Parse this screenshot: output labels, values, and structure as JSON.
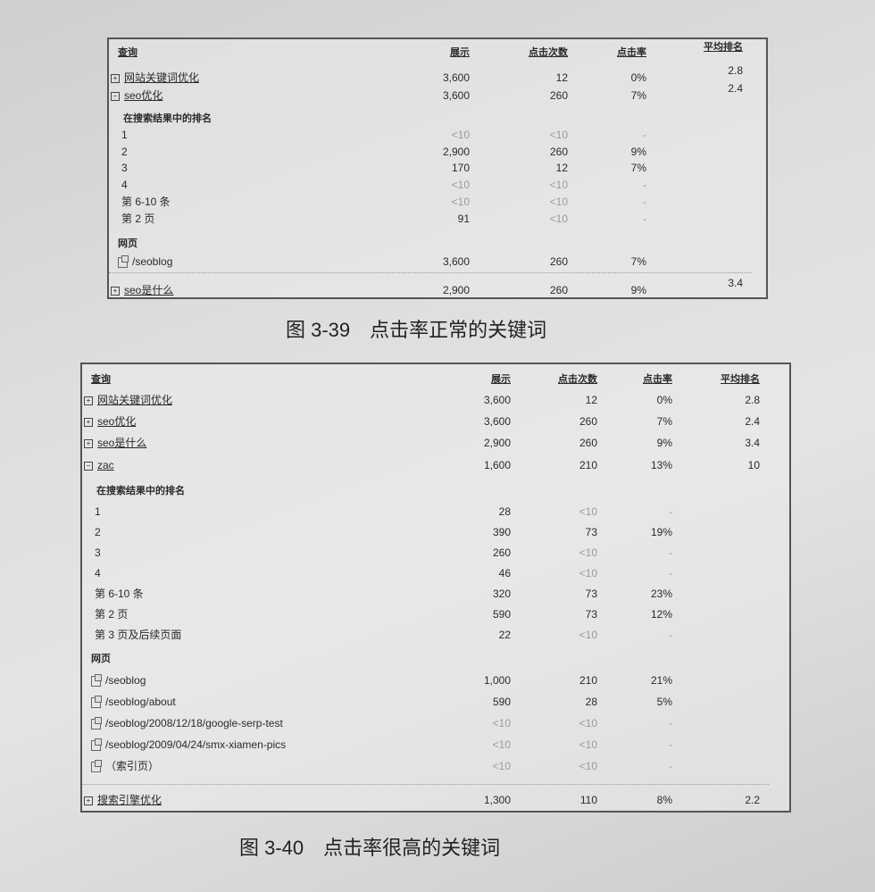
{
  "headers": [
    "查询",
    "展示",
    "点击次数",
    "点击率",
    "平均排名"
  ],
  "figure1": {
    "number": "图 3-39",
    "title": "点击率正常的关键词",
    "rows": [
      {
        "type": "query",
        "icon": "expand",
        "label": "网站关键词优化",
        "impressions": "3,600",
        "clicks": "12",
        "ctr": "0%",
        "avg": "2.8"
      },
      {
        "type": "query",
        "icon": "collapse",
        "label": "seo优化",
        "impressions": "3,600",
        "clicks": "260",
        "ctr": "7%",
        "avg": "2.4"
      },
      {
        "type": "section",
        "label": "在搜索结果中的排名"
      },
      {
        "type": "rank",
        "label": "1",
        "impressions": "<10",
        "clicks": "<10",
        "ctr": "-"
      },
      {
        "type": "rank",
        "label": "2",
        "impressions": "2,900",
        "clicks": "260",
        "ctr": "9%"
      },
      {
        "type": "rank",
        "label": "3",
        "impressions": "170",
        "clicks": "12",
        "ctr": "7%"
      },
      {
        "type": "rank",
        "label": "4",
        "impressions": "<10",
        "clicks": "<10",
        "ctr": "-"
      },
      {
        "type": "rank",
        "label": "第 6-10 条",
        "impressions": "<10",
        "clicks": "<10",
        "ctr": "-"
      },
      {
        "type": "rank",
        "label": "第 2 页",
        "impressions": "91",
        "clicks": "<10",
        "ctr": "-"
      },
      {
        "type": "section",
        "label": "网页"
      },
      {
        "type": "page",
        "label": "/seoblog",
        "impressions": "3,600",
        "clicks": "260",
        "ctr": "7%"
      },
      {
        "type": "query",
        "icon": "expand",
        "label": "seo是什么",
        "impressions": "2,900",
        "clicks": "260",
        "ctr": "9%",
        "avg": "3.4"
      }
    ]
  },
  "figure2": {
    "number": "图 3-40",
    "title": "点击率很高的关键词",
    "rows": [
      {
        "type": "query",
        "icon": "expand",
        "label": "网站关键词优化",
        "impressions": "3,600",
        "clicks": "12",
        "ctr": "0%",
        "avg": "2.8"
      },
      {
        "type": "query",
        "icon": "expand",
        "label": "seo优化",
        "impressions": "3,600",
        "clicks": "260",
        "ctr": "7%",
        "avg": "2.4"
      },
      {
        "type": "query",
        "icon": "expand",
        "label": "seo是什么",
        "impressions": "2,900",
        "clicks": "260",
        "ctr": "9%",
        "avg": "3.4"
      },
      {
        "type": "query",
        "icon": "collapse",
        "label": "zac",
        "impressions": "1,600",
        "clicks": "210",
        "ctr": "13%",
        "avg": "10"
      },
      {
        "type": "section",
        "label": "在搜索结果中的排名"
      },
      {
        "type": "rank",
        "label": "1",
        "impressions": "28",
        "clicks": "<10",
        "ctr": "-"
      },
      {
        "type": "rank",
        "label": "2",
        "impressions": "390",
        "clicks": "73",
        "ctr": "19%"
      },
      {
        "type": "rank",
        "label": "3",
        "impressions": "260",
        "clicks": "<10",
        "ctr": "-"
      },
      {
        "type": "rank",
        "label": "4",
        "impressions": "46",
        "clicks": "<10",
        "ctr": "-"
      },
      {
        "type": "rank",
        "label": "第 6-10 条",
        "impressions": "320",
        "clicks": "73",
        "ctr": "23%"
      },
      {
        "type": "rank",
        "label": "第 2 页",
        "impressions": "590",
        "clicks": "73",
        "ctr": "12%"
      },
      {
        "type": "rank",
        "label": "第 3 页及后续页面",
        "impressions": "22",
        "clicks": "<10",
        "ctr": "-"
      },
      {
        "type": "section",
        "label": "网页"
      },
      {
        "type": "page",
        "label": "/seoblog",
        "impressions": "1,000",
        "clicks": "210",
        "ctr": "21%"
      },
      {
        "type": "page",
        "label": "/seoblog/about",
        "impressions": "590",
        "clicks": "28",
        "ctr": "5%"
      },
      {
        "type": "page",
        "label": "/seoblog/2008/12/18/google-serp-test",
        "impressions": "<10",
        "clicks": "<10",
        "ctr": "-"
      },
      {
        "type": "page",
        "label": "/seoblog/2009/04/24/smx-xiamen-pics",
        "impressions": "<10",
        "clicks": "<10",
        "ctr": "-"
      },
      {
        "type": "page",
        "label": "（索引页）",
        "impressions": "<10",
        "clicks": "<10",
        "ctr": "-"
      },
      {
        "type": "query",
        "icon": "expand",
        "label": "搜索引擎优化",
        "impressions": "1,300",
        "clicks": "110",
        "ctr": "8%",
        "avg": "2.2"
      }
    ]
  }
}
